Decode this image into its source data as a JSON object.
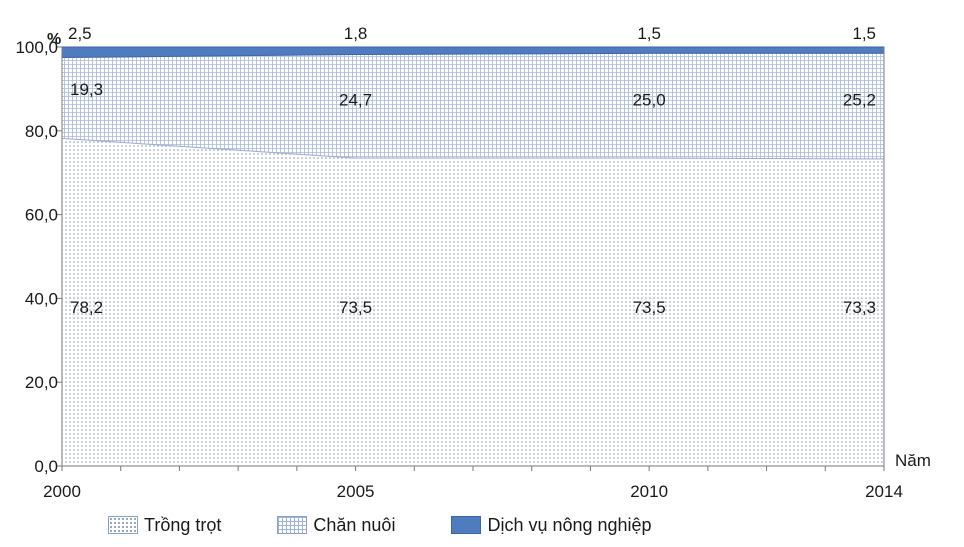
{
  "chart_data": {
    "type": "area",
    "stacked": true,
    "x": [
      2000,
      2005,
      2010,
      2014
    ],
    "x_tick_labels": [
      "2000",
      "2005",
      "2010",
      "2014"
    ],
    "y_tick_labels": [
      "0,0",
      "20,0",
      "40,0",
      "60,0",
      "80,0",
      "100,0"
    ],
    "ylim": [
      0,
      100
    ],
    "ylabel": "%",
    "xlabel": "Năm",
    "series": [
      {
        "name": "Trồng trọt",
        "values": [
          78.2,
          73.5,
          73.5,
          73.3
        ],
        "labels": [
          "78,2",
          "73,5",
          "73,5",
          "73,3"
        ],
        "pattern": "dots"
      },
      {
        "name": "Chăn nuôi",
        "values": [
          19.3,
          24.7,
          25.0,
          25.2
        ],
        "labels": [
          "19,3",
          "24,7",
          "25,0",
          "25,2"
        ],
        "pattern": "grid"
      },
      {
        "name": "Dịch vụ nông nghiệp",
        "values": [
          2.5,
          1.8,
          1.5,
          1.5
        ],
        "labels": [
          "2,5",
          "1,8",
          "1,5",
          "1,5"
        ],
        "pattern": "solid",
        "color": "#4f7cbf"
      }
    ],
    "legend_position": "bottom",
    "grid": false
  }
}
